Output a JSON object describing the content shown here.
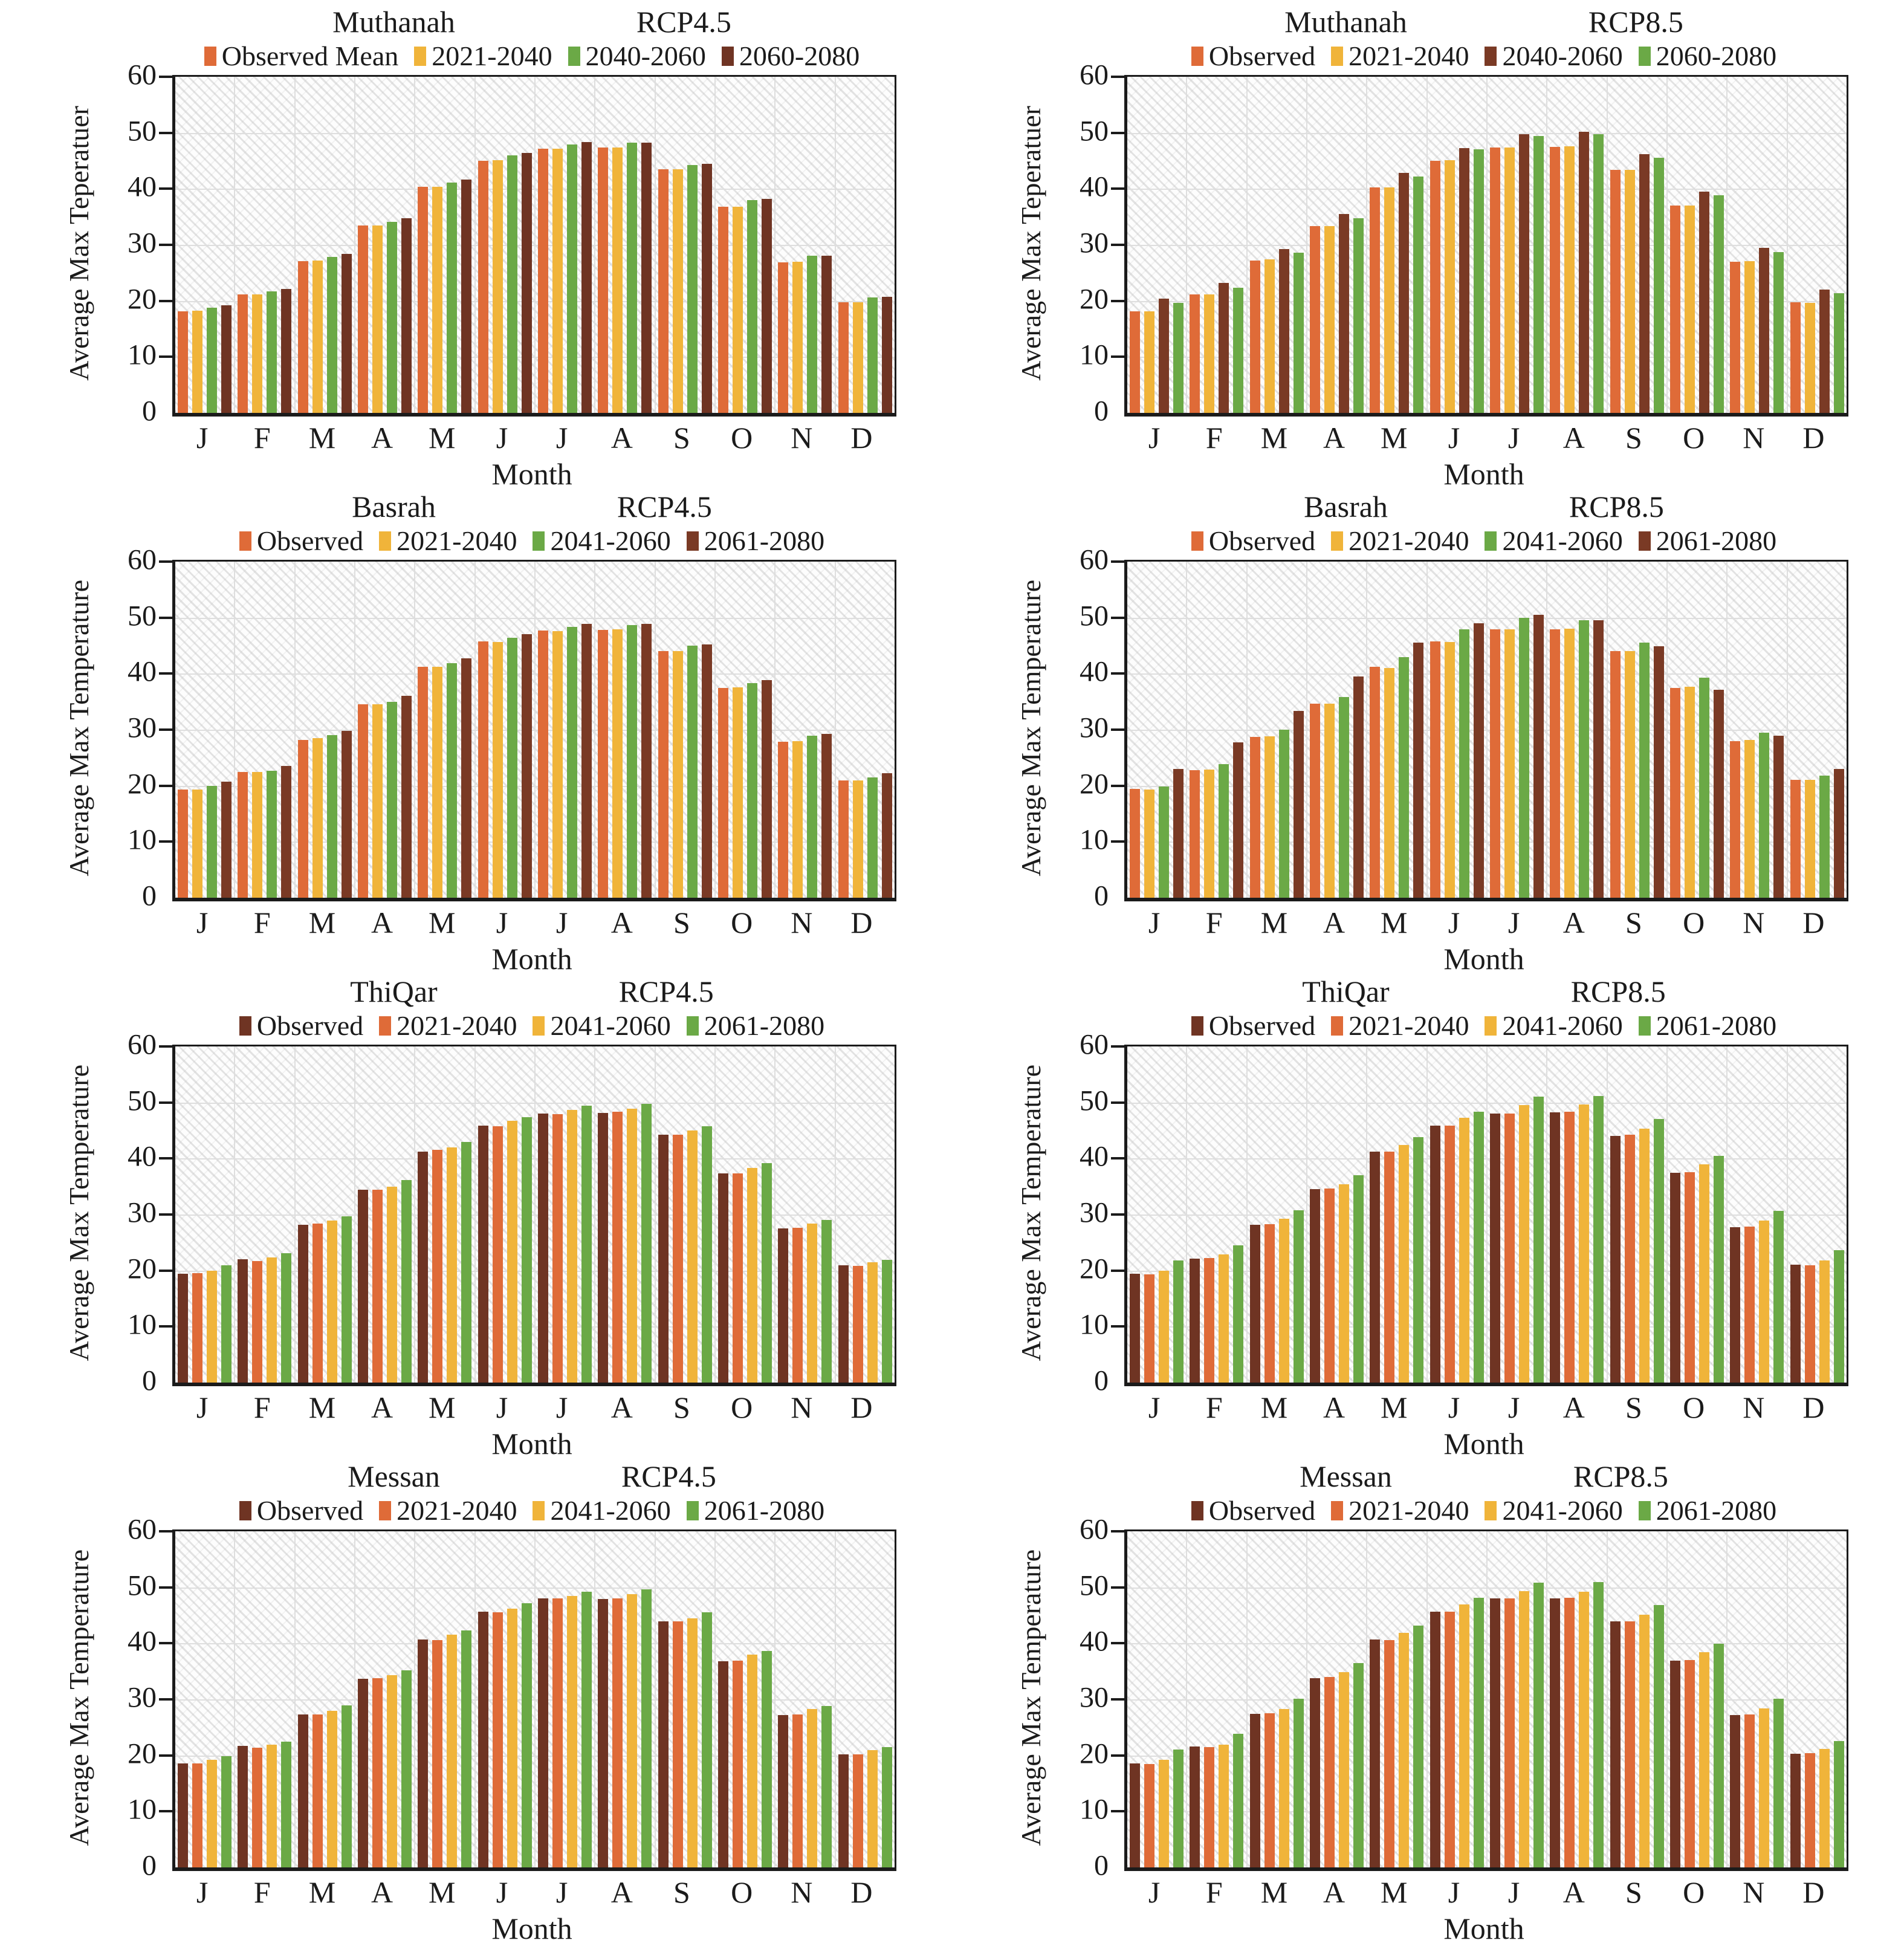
{
  "page": {
    "xlabel": "Month"
  },
  "chart_data": [
    {
      "type": "bar",
      "region": "Muthanah",
      "scenario": "RCP4.5",
      "ylabel": "Average Max Teperatuer",
      "xlabel": "Month",
      "categories": [
        "J",
        "F",
        "M",
        "A",
        "M",
        "J",
        "J",
        "A",
        "S",
        "O",
        "N",
        "D"
      ],
      "ylim": [
        0,
        60
      ],
      "yticks": [
        0,
        10,
        20,
        30,
        40,
        50,
        60
      ],
      "grid": true,
      "legend_position": "top",
      "series": [
        {
          "name": "Observed Mean",
          "color": "#DF6B38",
          "values": [
            18.1,
            21.2,
            27.1,
            33.5,
            40.4,
            45.0,
            47.2,
            47.4,
            43.5,
            36.8,
            26.9,
            19.8
          ]
        },
        {
          "name": "2021-2040",
          "color": "#F0B43A",
          "values": [
            18.2,
            21.1,
            27.2,
            33.5,
            40.4,
            45.1,
            47.2,
            47.4,
            43.5,
            36.8,
            27.0,
            19.8
          ]
        },
        {
          "name": "2040-2060",
          "color": "#6BA946",
          "values": [
            18.8,
            21.7,
            27.8,
            34.1,
            41.1,
            46.0,
            47.9,
            48.2,
            44.3,
            38.0,
            28.1,
            20.6
          ]
        },
        {
          "name": "2060-2080",
          "color": "#6F3423",
          "values": [
            19.2,
            22.1,
            28.4,
            34.8,
            41.7,
            46.4,
            48.3,
            48.2,
            44.5,
            38.2,
            28.1,
            20.7
          ]
        }
      ]
    },
    {
      "type": "bar",
      "region": "Muthanah",
      "scenario": "RCP8.5",
      "ylabel": "Average Max Teperatuer",
      "xlabel": "Month",
      "categories": [
        "J",
        "F",
        "M",
        "A",
        "M",
        "J",
        "J",
        "A",
        "S",
        "O",
        "N",
        "D"
      ],
      "ylim": [
        0,
        60
      ],
      "yticks": [
        0,
        10,
        20,
        30,
        40,
        50,
        60
      ],
      "grid": true,
      "legend_position": "top",
      "series": [
        {
          "name": "Observed",
          "color": "#DF6B38",
          "values": [
            18.1,
            21.1,
            27.2,
            33.4,
            40.3,
            45.0,
            47.4,
            47.5,
            43.4,
            37.0,
            27.0,
            19.7
          ]
        },
        {
          "name": "2021-2040",
          "color": "#F0B43A",
          "values": [
            18.1,
            21.1,
            27.4,
            33.4,
            40.2,
            45.1,
            47.4,
            47.6,
            43.4,
            37.0,
            27.1,
            19.6
          ]
        },
        {
          "name": "2040-2060",
          "color": "#7A3A25",
          "values": [
            20.4,
            23.2,
            29.3,
            35.5,
            42.8,
            47.3,
            49.8,
            50.2,
            46.2,
            39.5,
            29.5,
            22.0
          ]
        },
        {
          "name": "2060-2080",
          "color": "#6BA946",
          "values": [
            19.6,
            22.3,
            28.6,
            34.8,
            42.2,
            47.0,
            49.4,
            49.8,
            45.5,
            38.8,
            28.7,
            21.4
          ]
        }
      ]
    },
    {
      "type": "bar",
      "region": "Basrah",
      "scenario": "RCP4.5",
      "ylabel": "Average Max Temperature",
      "xlabel": "Month",
      "categories": [
        "J",
        "F",
        "M",
        "A",
        "M",
        "J",
        "J",
        "A",
        "S",
        "O",
        "N",
        "D"
      ],
      "ylim": [
        0,
        60
      ],
      "yticks": [
        0,
        10,
        20,
        30,
        40,
        50,
        60
      ],
      "grid": true,
      "legend_position": "top",
      "series": [
        {
          "name": "Observed",
          "color": "#DF6B38",
          "values": [
            19.3,
            22.5,
            28.2,
            34.5,
            41.2,
            45.8,
            47.7,
            47.8,
            44.0,
            37.4,
            27.8,
            20.9
          ]
        },
        {
          "name": "2021-2040",
          "color": "#F0B43A",
          "values": [
            19.3,
            22.4,
            28.5,
            34.5,
            41.2,
            45.6,
            47.6,
            47.9,
            44.0,
            37.6,
            28.0,
            20.9
          ]
        },
        {
          "name": "2041-2060",
          "color": "#6BA946",
          "values": [
            20.0,
            22.7,
            29.0,
            35.0,
            41.9,
            46.4,
            48.4,
            48.7,
            45.0,
            38.3,
            28.9,
            21.5
          ]
        },
        {
          "name": "2061-2080",
          "color": "#7A3A25",
          "values": [
            20.7,
            23.5,
            29.8,
            36.0,
            42.7,
            47.1,
            48.9,
            48.9,
            45.2,
            38.8,
            29.3,
            22.2
          ]
        }
      ]
    },
    {
      "type": "bar",
      "region": "Basrah",
      "scenario": "RCP8.5",
      "ylabel": "Average Max Temperature",
      "xlabel": "Month",
      "categories": [
        "J",
        "F",
        "M",
        "A",
        "M",
        "J",
        "J",
        "A",
        "S",
        "O",
        "N",
        "D"
      ],
      "ylim": [
        0,
        60
      ],
      "yticks": [
        0,
        10,
        20,
        30,
        40,
        50,
        60
      ],
      "grid": true,
      "legend_position": "top",
      "series": [
        {
          "name": "Observed",
          "color": "#DF6B38",
          "values": [
            19.4,
            22.8,
            28.7,
            34.6,
            41.2,
            45.8,
            47.9,
            47.9,
            44.0,
            37.5,
            27.9,
            21.0
          ]
        },
        {
          "name": "2021-2040",
          "color": "#F0B43A",
          "values": [
            19.3,
            22.9,
            28.8,
            34.6,
            41.0,
            45.7,
            47.9,
            48.0,
            44.0,
            37.7,
            28.2,
            21.0
          ]
        },
        {
          "name": "2041-2060",
          "color": "#6BA946",
          "values": [
            19.9,
            23.9,
            30.0,
            35.8,
            43.0,
            47.9,
            50.0,
            49.5,
            45.5,
            39.3,
            29.5,
            21.8
          ]
        },
        {
          "name": "2061-2080",
          "color": "#7A3A25",
          "values": [
            23.0,
            27.7,
            33.3,
            39.5,
            45.5,
            49.0,
            50.5,
            49.5,
            44.9,
            37.1,
            28.9,
            23.0
          ]
        }
      ]
    },
    {
      "type": "bar",
      "region": "ThiQar",
      "scenario": "RCP4.5",
      "ylabel": "Average Max Temperature",
      "xlabel": "Month",
      "categories": [
        "J",
        "F",
        "M",
        "A",
        "M",
        "J",
        "J",
        "A",
        "S",
        "O",
        "N",
        "D"
      ],
      "ylim": [
        0,
        60
      ],
      "yticks": [
        0,
        10,
        20,
        30,
        40,
        50,
        60
      ],
      "grid": true,
      "legend_position": "top",
      "series": [
        {
          "name": "Observed",
          "color": "#6F3423",
          "values": [
            19.4,
            22.0,
            28.2,
            34.4,
            41.2,
            45.9,
            48.0,
            48.1,
            44.2,
            37.3,
            27.5,
            20.9
          ]
        },
        {
          "name": "2021-2040",
          "color": "#DF6B38",
          "values": [
            19.5,
            21.7,
            28.4,
            34.4,
            41.5,
            45.8,
            47.9,
            48.3,
            44.2,
            37.3,
            27.6,
            20.8
          ]
        },
        {
          "name": "2041-2060",
          "color": "#F0B43A",
          "values": [
            20.0,
            22.3,
            28.9,
            35.0,
            42.0,
            46.7,
            48.7,
            48.9,
            45.0,
            38.3,
            28.4,
            21.5
          ]
        },
        {
          "name": "2061-2080",
          "color": "#6BA946",
          "values": [
            20.9,
            23.1,
            29.7,
            36.1,
            43.0,
            47.4,
            49.4,
            49.8,
            45.8,
            39.2,
            29.0,
            21.9
          ]
        }
      ]
    },
    {
      "type": "bar",
      "region": "ThiQar",
      "scenario": "RCP8.5",
      "ylabel": "Average Max Temperature",
      "xlabel": "Month",
      "categories": [
        "J",
        "F",
        "M",
        "A",
        "M",
        "J",
        "J",
        "A",
        "S",
        "O",
        "N",
        "D"
      ],
      "ylim": [
        0,
        60
      ],
      "yticks": [
        0,
        10,
        20,
        30,
        40,
        50,
        60
      ],
      "grid": true,
      "legend_position": "top",
      "series": [
        {
          "name": "Observed",
          "color": "#6F3423",
          "values": [
            19.4,
            22.1,
            28.2,
            34.5,
            41.2,
            45.9,
            48.0,
            48.2,
            44.0,
            37.4,
            27.7,
            21.0
          ]
        },
        {
          "name": "2021-2040",
          "color": "#DF6B38",
          "values": [
            19.3,
            22.2,
            28.3,
            34.6,
            41.2,
            45.9,
            48.0,
            48.3,
            44.2,
            37.6,
            27.8,
            20.9
          ]
        },
        {
          "name": "2041-2060",
          "color": "#F0B43A",
          "values": [
            20.0,
            22.9,
            29.2,
            35.4,
            42.4,
            47.3,
            49.5,
            49.6,
            45.3,
            39.0,
            28.9,
            21.8
          ]
        },
        {
          "name": "2061-2080",
          "color": "#6BA946",
          "values": [
            21.8,
            24.5,
            30.8,
            37.0,
            43.8,
            48.4,
            51.0,
            51.2,
            47.0,
            40.5,
            30.7,
            23.6
          ]
        }
      ]
    },
    {
      "type": "bar",
      "region": "Messan",
      "scenario": "RCP4.5",
      "ylabel": "Average Max Temperature",
      "xlabel": "Month",
      "categories": [
        "J",
        "F",
        "M",
        "A",
        "M",
        "J",
        "J",
        "A",
        "S",
        "O",
        "N",
        "D"
      ],
      "ylim": [
        0,
        60
      ],
      "yticks": [
        0,
        10,
        20,
        30,
        40,
        50,
        60
      ],
      "grid": true,
      "legend_position": "top",
      "series": [
        {
          "name": "Observed",
          "color": "#6F3423",
          "values": [
            18.6,
            21.7,
            27.3,
            33.7,
            40.7,
            45.6,
            48.0,
            47.9,
            43.9,
            36.8,
            27.2,
            20.2
          ]
        },
        {
          "name": "2021-2040",
          "color": "#DF6B38",
          "values": [
            18.6,
            21.4,
            27.3,
            33.8,
            40.6,
            45.5,
            48.0,
            48.0,
            43.9,
            36.9,
            27.3,
            20.2
          ]
        },
        {
          "name": "2041-2060",
          "color": "#F0B43A",
          "values": [
            19.2,
            21.9,
            27.9,
            34.3,
            41.5,
            46.2,
            48.5,
            48.8,
            44.5,
            38.0,
            28.3,
            20.9
          ]
        },
        {
          "name": "2061-2080",
          "color": "#6BA946",
          "values": [
            19.9,
            22.4,
            28.9,
            35.2,
            42.3,
            47.2,
            49.2,
            49.6,
            45.5,
            38.6,
            28.8,
            21.5
          ]
        }
      ]
    },
    {
      "type": "bar",
      "region": "Messan",
      "scenario": "RCP8.5",
      "ylabel": "Average Max Temperature",
      "xlabel": "Month",
      "categories": [
        "J",
        "F",
        "M",
        "A",
        "M",
        "J",
        "J",
        "A",
        "S",
        "O",
        "N",
        "D"
      ],
      "ylim": [
        0,
        60
      ],
      "yticks": [
        0,
        10,
        20,
        30,
        40,
        50,
        60
      ],
      "grid": true,
      "legend_position": "top",
      "series": [
        {
          "name": "Observed",
          "color": "#6F3423",
          "values": [
            18.6,
            21.6,
            27.4,
            33.8,
            40.7,
            45.6,
            48.0,
            48.0,
            43.9,
            36.9,
            27.2,
            20.3
          ]
        },
        {
          "name": "2021-2040",
          "color": "#DF6B38",
          "values": [
            18.5,
            21.5,
            27.5,
            34.0,
            40.6,
            45.6,
            48.0,
            48.1,
            43.9,
            37.0,
            27.3,
            20.4
          ]
        },
        {
          "name": "2041-2060",
          "color": "#F0B43A",
          "values": [
            19.2,
            21.9,
            28.3,
            34.9,
            41.9,
            46.9,
            49.3,
            49.2,
            45.1,
            38.4,
            28.4,
            21.1
          ]
        },
        {
          "name": "2061-2080",
          "color": "#6BA946",
          "values": [
            21.0,
            23.8,
            30.1,
            36.5,
            43.2,
            48.1,
            50.8,
            50.9,
            46.8,
            39.9,
            30.1,
            22.6
          ]
        }
      ]
    }
  ]
}
